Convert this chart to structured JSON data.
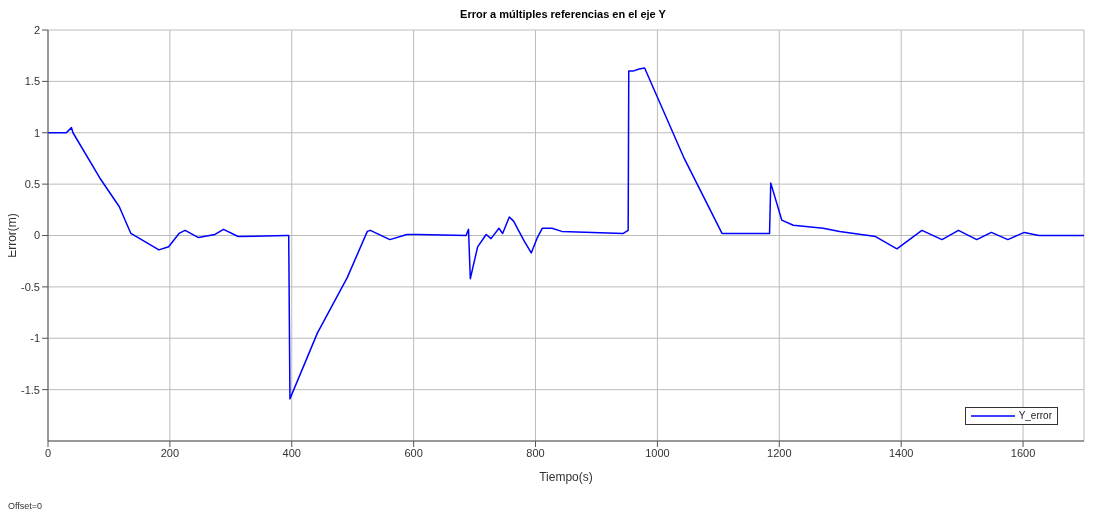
{
  "chart_data": {
    "type": "line",
    "title": "Error a múltiples referencias en el eje Y",
    "xlabel": "Tiempo(s)",
    "ylabel": "Error(m)",
    "annotations": [
      "Offset=0"
    ],
    "x": [
      0,
      30,
      38.5,
      41,
      85,
      117,
      136,
      182,
      198,
      215,
      225,
      247,
      274,
      288,
      312,
      391,
      395,
      397,
      442,
      491,
      524,
      529,
      561,
      589,
      608,
      686,
      690,
      693,
      705,
      719,
      727,
      740,
      746,
      757,
      764,
      781,
      793,
      803,
      811,
      827,
      843,
      944,
      952,
      953,
      960,
      970,
      979,
      1044,
      1106,
      1184,
      1186,
      1204,
      1223,
      1272,
      1299,
      1358,
      1393,
      1434,
      1467,
      1494,
      1524,
      1548,
      1575,
      1602,
      1626,
      1700
    ],
    "series": [
      {
        "name": "Y_error",
        "color": "#0000ff",
        "values": [
          1,
          1,
          1.05,
          1.0,
          0.56,
          0.28,
          0.02,
          -0.14,
          -0.11,
          0.02,
          0.05,
          -0.02,
          0.01,
          0.06,
          -0.01,
          0.0,
          0.0,
          -1.59,
          -0.95,
          -0.41,
          0.04,
          0.05,
          -0.04,
          0.01,
          0.01,
          0.0,
          0.06,
          -0.42,
          -0.11,
          0.01,
          -0.03,
          0.07,
          0.02,
          0.18,
          0.14,
          -0.05,
          -0.17,
          -0.02,
          0.07,
          0.07,
          0.04,
          0.02,
          0.05,
          1.6,
          1.6,
          1.62,
          1.63,
          0.75,
          0.02,
          0.02,
          0.51,
          0.15,
          0.1,
          0.07,
          0.04,
          -0.01,
          -0.13,
          0.05,
          -0.04,
          0.05,
          -0.04,
          0.03,
          -0.04,
          0.03,
          0.0,
          0.0
        ]
      }
    ],
    "xlim": [
      0,
      1700
    ],
    "xticks": [
      0,
      200,
      400,
      600,
      800,
      1000,
      1200,
      1400,
      1600
    ],
    "ylim": [
      -2,
      2
    ],
    "yticks": [
      -1.5,
      -1,
      -0.5,
      0,
      0.5,
      1,
      1.5,
      2
    ],
    "grid": true,
    "legend": "bottom right",
    "marker": "none",
    "line_style": "solid"
  }
}
